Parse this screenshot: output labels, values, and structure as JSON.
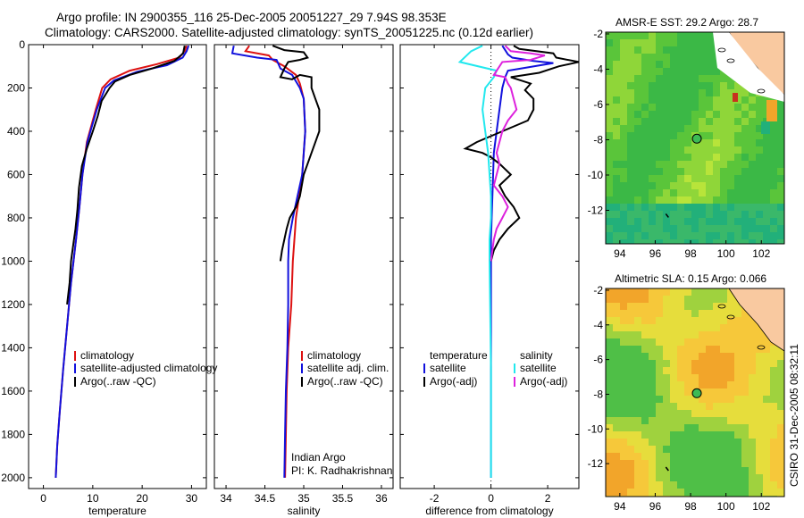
{
  "header": {
    "line1": "Argo profile: IN 2900355_116 25-Dec-2005 20051227_29 7.94S 98.353E",
    "line2": "Climatology: CARS2000. Satellite-adjusted climatology: synTS_20051225.nc (0.12d earlier)"
  },
  "stamp": "CSIRO 31-Dec-2005 08:32:11",
  "colors": {
    "climatology": "#dd1111",
    "satellite": "#1111dd",
    "argo": "#000000",
    "cyan": "#22e8ee",
    "magenta": "#dd22dd"
  },
  "chart_data": [
    {
      "type": "line",
      "xlabel": "temperature",
      "ylim": [
        2050,
        0
      ],
      "xlim": [
        -3,
        33
      ],
      "yticks": [
        0,
        200,
        400,
        600,
        800,
        1000,
        1200,
        1400,
        1600,
        1800,
        2000
      ],
      "xticks": [
        0,
        10,
        20,
        30
      ],
      "legend_position": "lower-right",
      "series": [
        {
          "name": "climatology",
          "color": "#dd1111",
          "points": [
            [
              29.0,
              5
            ],
            [
              28.6,
              30
            ],
            [
              27.5,
              60
            ],
            [
              23,
              90
            ],
            [
              17.5,
              120
            ],
            [
              13.6,
              160
            ],
            [
              11.9,
              200
            ],
            [
              10.6,
              300
            ],
            [
              8.8,
              450
            ],
            [
              7.9,
              600
            ],
            [
              7.3,
              750
            ],
            [
              6.6,
              900
            ],
            [
              5.6,
              1100
            ],
            [
              4.8,
              1300
            ],
            [
              4.0,
              1500
            ],
            [
              3.3,
              1700
            ],
            [
              2.8,
              1850
            ],
            [
              2.5,
              2000
            ]
          ]
        },
        {
          "name": "satellite-adjusted climatology",
          "color": "#1111dd",
          "points": [
            [
              29.4,
              5
            ],
            [
              29.0,
              30
            ],
            [
              28.2,
              60
            ],
            [
              25,
              95
            ],
            [
              19,
              125
            ],
            [
              14.3,
              165
            ],
            [
              12.5,
              200
            ],
            [
              10.8,
              300
            ],
            [
              8.9,
              450
            ],
            [
              7.9,
              600
            ],
            [
              7.3,
              750
            ],
            [
              6.6,
              900
            ],
            [
              5.6,
              1100
            ],
            [
              4.8,
              1300
            ],
            [
              4.0,
              1500
            ],
            [
              3.3,
              1700
            ],
            [
              2.8,
              1850
            ],
            [
              2.5,
              2000
            ]
          ]
        },
        {
          "name": "Argo(..raw -QC)",
          "color": "#000000",
          "points": [
            [
              28.6,
              5
            ],
            [
              28.3,
              40
            ],
            [
              26.5,
              75
            ],
            [
              22,
              110
            ],
            [
              17.5,
              140
            ],
            [
              14.5,
              170
            ],
            [
              13.4,
              200
            ],
            [
              11.8,
              260
            ],
            [
              11.0,
              330
            ],
            [
              10.0,
              400
            ],
            [
              8.8,
              480
            ],
            [
              7.8,
              560
            ],
            [
              7.2,
              660
            ],
            [
              6.9,
              760
            ],
            [
              6.5,
              850
            ],
            [
              6.0,
              930
            ],
            [
              5.6,
              1000
            ],
            [
              5.3,
              1100
            ],
            [
              4.8,
              1200
            ]
          ]
        }
      ]
    },
    {
      "type": "line",
      "xlabel": "salinity",
      "ylim": [
        2050,
        0
      ],
      "xlim": [
        33.85,
        36.15
      ],
      "xticks": [
        34,
        34.5,
        35,
        35.5,
        36
      ],
      "legend_position": "lower-right",
      "series": [
        {
          "name": "climatology",
          "color": "#dd1111",
          "points": [
            [
              34.3,
              5
            ],
            [
              34.25,
              30
            ],
            [
              34.55,
              50
            ],
            [
              34.6,
              70
            ],
            [
              34.75,
              100
            ],
            [
              34.9,
              140
            ],
            [
              34.95,
              180
            ],
            [
              35.0,
              250
            ],
            [
              35.02,
              400
            ],
            [
              34.98,
              600
            ],
            [
              34.9,
              800
            ],
            [
              34.86,
              1000
            ],
            [
              34.84,
              1200
            ],
            [
              34.8,
              1400
            ],
            [
              34.78,
              1600
            ],
            [
              34.77,
              1800
            ],
            [
              34.76,
              2000
            ]
          ]
        },
        {
          "name": "satellite adj. clim.",
          "color": "#1111dd",
          "points": [
            [
              34.1,
              5
            ],
            [
              34.08,
              40
            ],
            [
              34.4,
              60
            ],
            [
              34.65,
              70
            ],
            [
              34.7,
              110
            ],
            [
              34.85,
              140
            ],
            [
              34.95,
              200
            ],
            [
              35.0,
              250
            ],
            [
              35.02,
              400
            ],
            [
              34.98,
              600
            ],
            [
              34.92,
              700
            ],
            [
              34.86,
              800
            ],
            [
              34.81,
              900
            ],
            [
              34.8,
              1000
            ],
            [
              34.8,
              1200
            ],
            [
              34.79,
              1400
            ],
            [
              34.77,
              1600
            ],
            [
              34.76,
              1800
            ],
            [
              34.75,
              2000
            ]
          ]
        },
        {
          "name": "Argo(..raw -QC)",
          "color": "#000000",
          "points": [
            [
              34.6,
              5
            ],
            [
              34.75,
              25
            ],
            [
              35.0,
              35
            ],
            [
              35.05,
              60
            ],
            [
              34.95,
              70
            ],
            [
              34.8,
              80
            ],
            [
              34.75,
              110
            ],
            [
              34.7,
              150
            ],
            [
              34.85,
              160
            ],
            [
              34.95,
              140
            ],
            [
              35.1,
              150
            ],
            [
              35.1,
              200
            ],
            [
              35.15,
              250
            ],
            [
              35.2,
              300
            ],
            [
              35.2,
              400
            ],
            [
              35.1,
              500
            ],
            [
              35.0,
              600
            ],
            [
              34.95,
              700
            ],
            [
              34.9,
              750
            ],
            [
              34.85,
              780
            ],
            [
              34.82,
              800
            ],
            [
              34.78,
              850
            ],
            [
              34.75,
              900
            ],
            [
              34.72,
              950
            ],
            [
              34.7,
              1000
            ]
          ]
        }
      ],
      "annotation": [
        "Indian Argo",
        "PI: K. Radhakrishnan"
      ]
    },
    {
      "type": "line",
      "xlabel": "difference from climatology",
      "ylim": [
        2050,
        0
      ],
      "xlim": [
        -3.2,
        3.1
      ],
      "xticks": [
        -2,
        0,
        2
      ],
      "legend_position": "lower-right",
      "legend_headers": [
        "temperature",
        "salinity"
      ],
      "series": [
        {
          "name": "satellite",
          "group": "temperature",
          "color": "#1111dd",
          "points": [
            [
              0.4,
              5
            ],
            [
              0.5,
              25
            ],
            [
              0.6,
              45
            ],
            [
              0.75,
              60
            ],
            [
              1.5,
              75
            ],
            [
              2.2,
              85
            ],
            [
              0.6,
              120
            ],
            [
              0.5,
              150
            ],
            [
              0.4,
              200
            ],
            [
              0.3,
              300
            ],
            [
              0.1,
              500
            ],
            [
              0.05,
              700
            ],
            [
              0.0,
              900
            ],
            [
              0.0,
              1000
            ],
            [
              0.0,
              1500
            ],
            [
              0.0,
              2000
            ]
          ]
        },
        {
          "name": "Argo(-adj)",
          "group": "temperature",
          "color": "#000000",
          "points": [
            [
              0.8,
              5
            ],
            [
              1.0,
              20
            ],
            [
              2.2,
              40
            ],
            [
              2.3,
              60
            ],
            [
              3.1,
              80
            ],
            [
              2.4,
              100
            ],
            [
              1.7,
              130
            ],
            [
              0.7,
              150
            ],
            [
              1.4,
              180
            ],
            [
              1.2,
              210
            ],
            [
              1.5,
              250
            ],
            [
              1.5,
              300
            ],
            [
              1.3,
              350
            ],
            [
              0.4,
              400
            ],
            [
              -0.5,
              450
            ],
            [
              -0.9,
              480
            ],
            [
              -0.3,
              500
            ],
            [
              0.0,
              520
            ],
            [
              0.3,
              550
            ],
            [
              0.7,
              600
            ],
            [
              0.3,
              650
            ],
            [
              0.5,
              700
            ],
            [
              0.8,
              750
            ],
            [
              1.0,
              800
            ],
            [
              0.6,
              850
            ],
            [
              0.3,
              900
            ],
            [
              0.1,
              950
            ],
            [
              0.0,
              1000
            ]
          ]
        },
        {
          "name": "satellite",
          "group": "salinity",
          "color": "#22e8ee",
          "points": [
            [
              -0.3,
              5
            ],
            [
              -0.7,
              30
            ],
            [
              -1.1,
              80
            ],
            [
              0.2,
              120
            ],
            [
              0.1,
              150
            ],
            [
              -0.2,
              200
            ],
            [
              -0.3,
              300
            ],
            [
              -0.2,
              400
            ],
            [
              -0.1,
              500
            ],
            [
              -0.05,
              600
            ],
            [
              0.0,
              700
            ],
            [
              0.0,
              800
            ],
            [
              -0.05,
              900
            ],
            [
              -0.05,
              1000
            ],
            [
              0.0,
              1500
            ],
            [
              0.0,
              2000
            ]
          ]
        },
        {
          "name": "Argo(-adj)",
          "group": "salinity",
          "color": "#dd22dd",
          "points": [
            [
              0.5,
              5
            ],
            [
              0.7,
              30
            ],
            [
              1.4,
              40
            ],
            [
              1.9,
              50
            ],
            [
              1.4,
              70
            ],
            [
              0.4,
              80
            ],
            [
              0.1,
              140
            ],
            [
              0.5,
              150
            ],
            [
              0.6,
              180
            ],
            [
              0.7,
              200
            ],
            [
              0.8,
              250
            ],
            [
              0.9,
              300
            ],
            [
              0.6,
              350
            ],
            [
              0.4,
              400
            ],
            [
              0.3,
              450
            ],
            [
              0.2,
              500
            ],
            [
              0.3,
              550
            ],
            [
              0.2,
              600
            ],
            [
              0.1,
              650
            ],
            [
              0.4,
              700
            ],
            [
              0.6,
              750
            ],
            [
              0.4,
              800
            ],
            [
              0.2,
              850
            ],
            [
              0.1,
              900
            ],
            [
              0.0,
              1000
            ]
          ]
        }
      ]
    },
    {
      "type": "heatmap",
      "title": "AMSR-E SST: 29.2 Argo: 28.7",
      "xlim": [
        93.2,
        103.3
      ],
      "ylim": [
        -13.9,
        -1.9
      ],
      "xticks": [
        94,
        96,
        98,
        100,
        102
      ],
      "yticks": [
        -2,
        -4,
        -6,
        -8,
        -10,
        -12
      ],
      "marker": {
        "lon": 98.353,
        "lat": -7.94
      }
    },
    {
      "type": "heatmap",
      "title": "Altimetric SLA: 0.15 Argo: 0.066",
      "xlim": [
        93.2,
        103.3
      ],
      "ylim": [
        -13.9,
        -1.9
      ],
      "xticks": [
        94,
        96,
        98,
        100,
        102
      ],
      "yticks": [
        -2,
        -4,
        -6,
        -8,
        -10,
        -12
      ],
      "marker": {
        "lon": 98.353,
        "lat": -7.94
      }
    }
  ]
}
